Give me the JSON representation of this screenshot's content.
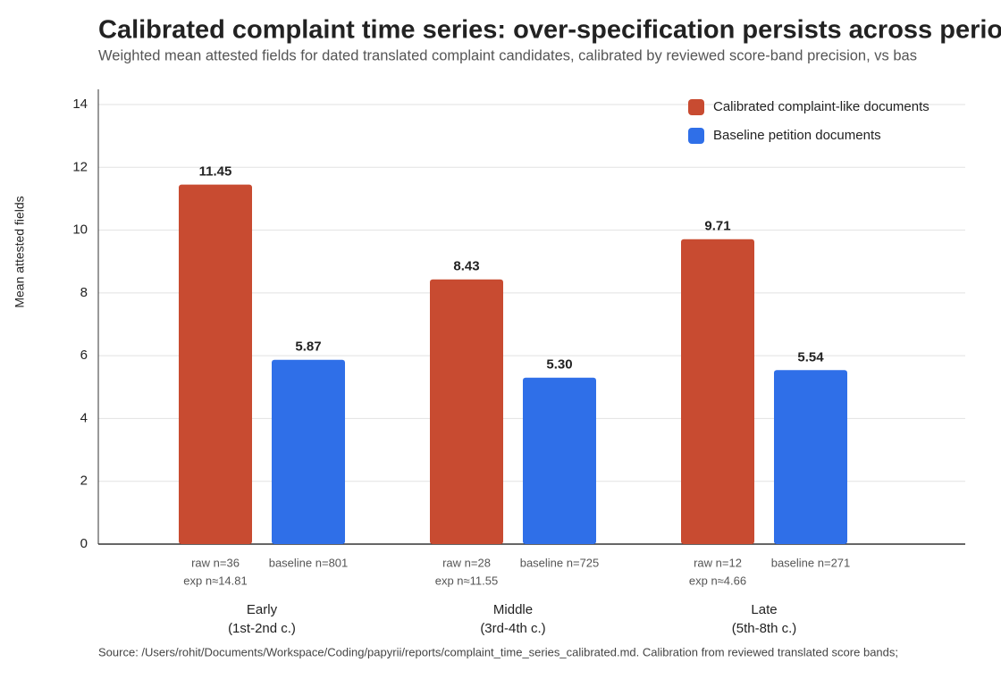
{
  "chart_data": {
    "type": "bar",
    "title": "Calibrated complaint time series: over-specification persists across perio",
    "subtitle": "Weighted mean attested fields for dated translated complaint candidates, calibrated by reviewed score-band precision, vs bas",
    "source": "Source: /Users/rohit/Documents/Workspace/Coding/papyrii/reports/complaint_time_series_calibrated.md. Calibration from reviewed translated score bands;",
    "y_label": "Mean attested fields",
    "categories": [
      "Early",
      "Middle",
      "Late"
    ],
    "category_periods": [
      "(1st-2nd c.)",
      "(3rd-4th c.)",
      "(5th-8th c.)"
    ],
    "series": [
      {
        "name": "Calibrated complaint-like documents",
        "color": "#c84b31",
        "values": [
          11.45,
          8.43,
          9.71
        ],
        "value_labels": [
          "11.45",
          "8.43",
          "9.71"
        ],
        "bar_labels": [
          [
            "raw n=36",
            "exp n≈14.81"
          ],
          [
            "raw n=28",
            "exp n≈11.55"
          ],
          [
            "raw n=12",
            "exp n≈4.66"
          ]
        ]
      },
      {
        "name": "Baseline petition documents",
        "color": "#2f6fe8",
        "values": [
          5.87,
          5.3,
          5.54
        ],
        "value_labels": [
          "5.87",
          "5.30",
          "5.54"
        ],
        "bar_labels": [
          [
            "baseline n=801"
          ],
          [
            "baseline n=725"
          ],
          [
            "baseline n=271"
          ]
        ]
      }
    ],
    "ylim": [
      0,
      14
    ],
    "yticks": [
      0,
      2,
      4,
      6,
      8,
      10,
      12,
      14
    ],
    "grid": true,
    "legend": "top-right"
  }
}
